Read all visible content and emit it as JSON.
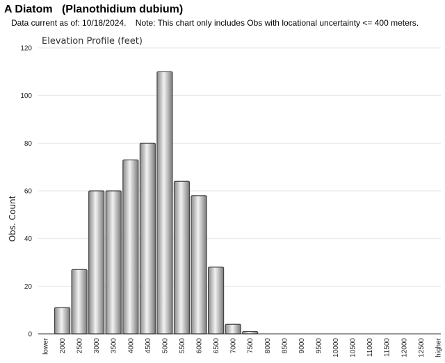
{
  "header": {
    "title": "A Diatom   (Planothidium dubium)",
    "subtitle": "Data current as of: 10/18/2024.    Note: This chart only includes Obs with locational uncertainty <= 400 meters."
  },
  "chart_data": {
    "type": "bar",
    "title": "Elevation Profile (feet)",
    "xlabel": "",
    "ylabel": "Obs. Count",
    "categories": [
      "lower",
      "2000",
      "2500",
      "3000",
      "3500",
      "4000",
      "4500",
      "5000",
      "5500",
      "6000",
      "6500",
      "7000",
      "7500",
      "8000",
      "8500",
      "9000",
      "9500",
      "10000",
      "10500",
      "11000",
      "11500",
      "12000",
      "12500",
      "higher"
    ],
    "values": [
      0,
      11,
      27,
      60,
      60,
      73,
      80,
      110,
      64,
      58,
      28,
      4,
      1,
      0,
      0,
      0,
      0,
      0,
      0,
      0,
      0,
      0,
      0,
      0
    ],
    "ylim": [
      0,
      120
    ],
    "yticks": [
      0,
      20,
      40,
      60,
      80,
      100,
      120
    ],
    "grid": true,
    "legend": "none",
    "bar_color": "#c8c8c8",
    "bar_edge_color": "#444444"
  }
}
